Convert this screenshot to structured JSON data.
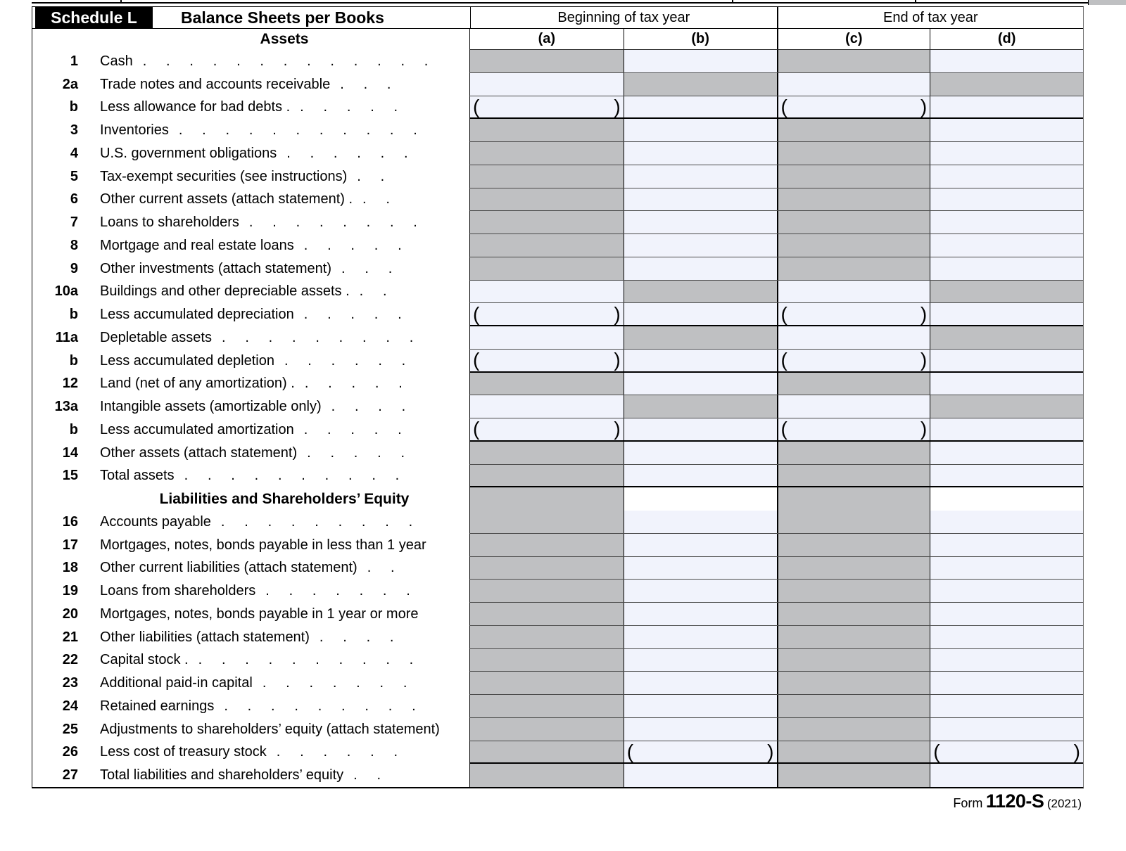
{
  "header": {
    "schedule_label": "Schedule L",
    "title": "Balance Sheets per Books",
    "group_beginning": "Beginning of tax year",
    "group_end": "End of tax year",
    "assets_label": "Assets",
    "columns": {
      "a": "(a)",
      "b": "(b)",
      "c": "(c)",
      "d": "(d)"
    }
  },
  "rows": [
    {
      "id": "1",
      "type": "item",
      "num": "1",
      "label": "Cash",
      "dots": ".     .     .     .     .     .     .     .     .     .     .     .     .",
      "pattern": [
        "g",
        "b",
        "g",
        "b"
      ],
      "border": "normal"
    },
    {
      "id": "2a",
      "type": "item",
      "num": "2a",
      "label": "Trade notes and accounts receivable",
      "dots": ".     .     .",
      "pattern": [
        "b",
        "g",
        "b",
        "g"
      ],
      "border": "normal"
    },
    {
      "id": "2b",
      "type": "item",
      "num": "b",
      "label": "Less allowance for bad debts .",
      "dots": ".     .     .     .     .",
      "pattern": [
        "p",
        "b",
        "p",
        "b"
      ],
      "border": "heavy"
    },
    {
      "id": "3",
      "type": "item",
      "num": "3",
      "label": "Inventories",
      "dots": ".     .     .     .     .     .     .     .     .     .     .",
      "pattern": [
        "g",
        "b",
        "g",
        "b"
      ],
      "border": "normal"
    },
    {
      "id": "4",
      "type": "item",
      "num": "4",
      "label": "U.S. government obligations",
      "dots": ".     .     .     .     .     .",
      "pattern": [
        "g",
        "b",
        "g",
        "b"
      ],
      "border": "normal"
    },
    {
      "id": "5",
      "type": "item",
      "num": "5",
      "label": "Tax-exempt securities (see instructions)",
      "dots": ".     .",
      "pattern": [
        "g",
        "b",
        "g",
        "b"
      ],
      "border": "normal"
    },
    {
      "id": "6",
      "type": "item",
      "num": "6",
      "label": "Other current assets (attach statement) .",
      "dots": ".     .",
      "pattern": [
        "g",
        "b",
        "g",
        "b"
      ],
      "border": "normal"
    },
    {
      "id": "7",
      "type": "item",
      "num": "7",
      "label": "Loans to shareholders",
      "dots": ".     .     .     .     .     .     .     .",
      "pattern": [
        "g",
        "b",
        "g",
        "b"
      ],
      "border": "normal"
    },
    {
      "id": "8",
      "type": "item",
      "num": "8",
      "label": "Mortgage and real estate loans",
      "dots": ".     .     .     .     .",
      "pattern": [
        "g",
        "b",
        "g",
        "b"
      ],
      "border": "normal"
    },
    {
      "id": "9",
      "type": "item",
      "num": "9",
      "label": "Other investments (attach statement)",
      "dots": ".     .     .",
      "pattern": [
        "g",
        "b",
        "g",
        "b"
      ],
      "border": "normal"
    },
    {
      "id": "10a",
      "type": "item",
      "num": "10a",
      "label": "Buildings and other depreciable assets .",
      "dots": ".     .",
      "pattern": [
        "b",
        "g",
        "b",
        "g"
      ],
      "border": "normal"
    },
    {
      "id": "10b",
      "type": "item",
      "num": "b",
      "label": "Less accumulated depreciation",
      "dots": ".     .     .     .     .",
      "pattern": [
        "p",
        "b",
        "p",
        "b"
      ],
      "border": "heavy"
    },
    {
      "id": "11a",
      "type": "item",
      "num": "11a",
      "label": "Depletable assets",
      "dots": ".     .     .     .     .     .     .     .     .",
      "pattern": [
        "b",
        "g",
        "b",
        "g"
      ],
      "border": "normal"
    },
    {
      "id": "11b",
      "type": "item",
      "num": "b",
      "label": "Less accumulated depletion",
      "dots": ".     .     .     .     .     .",
      "pattern": [
        "p",
        "b",
        "p",
        "b"
      ],
      "border": "heavy"
    },
    {
      "id": "12",
      "type": "item",
      "num": "12",
      "label": "Land (net of any amortization) .",
      "dots": ".     .     .     .     .",
      "pattern": [
        "g",
        "b",
        "g",
        "b"
      ],
      "border": "normal"
    },
    {
      "id": "13a",
      "type": "item",
      "num": "13a",
      "label": "Intangible assets (amortizable only)",
      "dots": ".     .     .     .",
      "pattern": [
        "b",
        "g",
        "b",
        "g"
      ],
      "border": "normal"
    },
    {
      "id": "13b",
      "type": "item",
      "num": "b",
      "label": "Less accumulated amortization",
      "dots": ".     .     .     .     .",
      "pattern": [
        "p",
        "b",
        "p",
        "b"
      ],
      "border": "heavy"
    },
    {
      "id": "14",
      "type": "item",
      "num": "14",
      "label": "Other assets (attach statement)",
      "dots": ".     .     .     .     .",
      "pattern": [
        "g",
        "b",
        "g",
        "b"
      ],
      "border": "normal"
    },
    {
      "id": "15",
      "type": "item",
      "num": "15",
      "label": "Total assets",
      "dots": ".     .     .     .     .     .     .     .     .     .",
      "pattern": [
        "g",
        "b",
        "g",
        "b"
      ],
      "border": "heavy"
    },
    {
      "id": "liab-header",
      "type": "section",
      "label": "Liabilities and Shareholders’ Equity",
      "pattern": [
        "g",
        "w",
        "g",
        "w"
      ],
      "border": "none"
    },
    {
      "id": "16",
      "type": "item",
      "num": "16",
      "label": "Accounts payable",
      "dots": ".     .     .     .     .     .     .     .     .",
      "pattern": [
        "g",
        "b",
        "g",
        "b"
      ],
      "border": "normal"
    },
    {
      "id": "17",
      "type": "item",
      "num": "17",
      "label": "Mortgages, notes, bonds payable in less than 1 year",
      "dots": "",
      "pattern": [
        "g",
        "b",
        "g",
        "b"
      ],
      "border": "normal"
    },
    {
      "id": "18",
      "type": "item",
      "num": "18",
      "label": "Other current liabilities (attach statement)",
      "dots": ".     .",
      "pattern": [
        "g",
        "b",
        "g",
        "b"
      ],
      "border": "normal"
    },
    {
      "id": "19",
      "type": "item",
      "num": "19",
      "label": "Loans from shareholders",
      "dots": ".     .     .     .     .     .     .",
      "pattern": [
        "g",
        "b",
        "g",
        "b"
      ],
      "border": "normal"
    },
    {
      "id": "20",
      "type": "item",
      "num": "20",
      "label": "Mortgages, notes, bonds payable in 1 year or more",
      "dots": "",
      "pattern": [
        "g",
        "b",
        "g",
        "b"
      ],
      "border": "normal"
    },
    {
      "id": "21",
      "type": "item",
      "num": "21",
      "label": "Other liabilities (attach statement)",
      "dots": ".     .     .     .",
      "pattern": [
        "g",
        "b",
        "g",
        "b"
      ],
      "border": "normal"
    },
    {
      "id": "22",
      "type": "item",
      "num": "22",
      "label": "Capital stock .",
      "dots": ".     .     .     .     .     .     .     .     .     .",
      "pattern": [
        "g",
        "b",
        "g",
        "b"
      ],
      "border": "normal"
    },
    {
      "id": "23",
      "type": "item",
      "num": "23",
      "label": "Additional paid-in capital",
      "dots": ".     .     .     .     .     .     .",
      "pattern": [
        "g",
        "b",
        "g",
        "b"
      ],
      "border": "normal"
    },
    {
      "id": "24",
      "type": "item",
      "num": "24",
      "label": "Retained earnings",
      "dots": ".     .     .     .     .     .     .     .     .",
      "pattern": [
        "g",
        "b",
        "g",
        "b"
      ],
      "border": "normal"
    },
    {
      "id": "25",
      "type": "item",
      "num": "25",
      "label": "Adjustments to shareholders’ equity (attach statement)",
      "dots": "",
      "pattern": [
        "g",
        "b",
        "g",
        "b"
      ],
      "border": "normal"
    },
    {
      "id": "26",
      "type": "item",
      "num": "26",
      "label": "Less cost of treasury stock",
      "dots": ".     .     .     .     .     .",
      "pattern": [
        "g",
        "p",
        "g",
        "p"
      ],
      "border": "heavy"
    },
    {
      "id": "27",
      "type": "item",
      "num": "27",
      "label": "Total liabilities and shareholders’ equity",
      "dots": ".     .",
      "pattern": [
        "g",
        "b",
        "g",
        "b"
      ],
      "border": "none"
    }
  ],
  "footer": {
    "form_word": "Form",
    "form_number": "1120-S",
    "form_year": "(2021)"
  },
  "colors": {
    "shaded_cell": "#bfc0c2",
    "input_cell": "#f1f3fc",
    "header_box": "#000000"
  }
}
